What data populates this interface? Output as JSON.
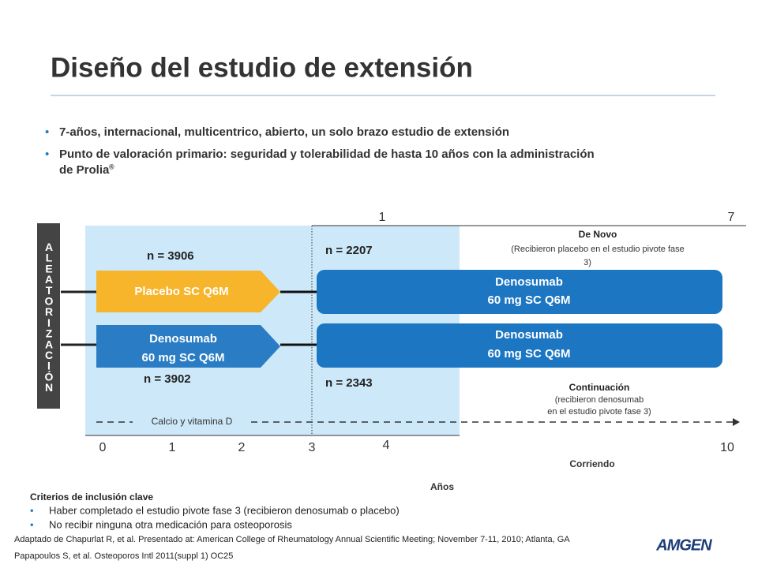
{
  "header": {
    "title": "Diseño del estudio de extensión"
  },
  "bullets": [
    "7-años, internacional, multicentrico, abierto, un solo brazo estudio de extensión",
    "Punto de valoración primario: seguridad y tolerabilidad de hasta 10 años con la administración",
    "de Prolia"
  ],
  "trademark": "®",
  "randomization": "ALEATORIZACIÓN",
  "arms": [
    {
      "n": "n = 3906",
      "label": [
        "Placebo SC Q6M"
      ]
    },
    {
      "n": "n = 3902",
      "label": [
        "Denosumab",
        "60 mg SC Q6M"
      ]
    }
  ],
  "extension": [
    {
      "n": "n = 2207",
      "label": [
        "Denosumab",
        "60 mg SC Q6M"
      ],
      "group": "De Novo",
      "description": [
        "(Recibieron placebo en el estudio pivote fase",
        "3)"
      ]
    },
    {
      "n": "n = 2343",
      "label": [
        "Denosumab",
        "60 mg SC Q6M"
      ],
      "group": "Continuación",
      "description": [
        "(recibieron denosumab",
        "en el estudio pivote fase 3)"
      ]
    }
  ],
  "supplement": "Calcio y vitamina D",
  "extension_years": [
    "1",
    "7"
  ],
  "years": [
    "0",
    "1",
    "2",
    "3",
    "4",
    "10"
  ],
  "running": "Corriendo",
  "axis_title": "Años",
  "criteria": {
    "title": "Criterios de inclusión clave",
    "items": [
      "Haber completado el estudio pivote fase 3 (recibieron denosumab o placebo)",
      "No recibir ninguna otra medicación para osteoporosis"
    ]
  },
  "references": [
    "Adaptado de Chapurlat R, et al. Presentado at: American College of Rheumatology Annual Scientific Meeting; November 7-11, 2010; Atlanta, GA",
    "Papapoulos S, et al. Osteoporos Intl  2011(suppl 1) OC25"
  ],
  "logo": "AMGEN"
}
